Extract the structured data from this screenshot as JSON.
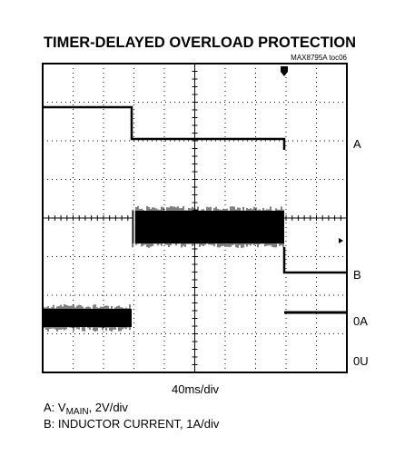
{
  "header": {
    "title": "TIMER-DELAYED OVERLOAD PROTECTION",
    "figure_id": "MAX8795A toc06"
  },
  "scope": {
    "channel_labels": [
      "A",
      "B",
      "0A",
      "0U"
    ],
    "timebase": "40ms/div"
  },
  "legend": {
    "a": {
      "prefix": "A: V",
      "sub": "MAIN",
      "suffix": ", 2V/div"
    },
    "b": "B: INDUCTOR CURRENT, 1A/div"
  }
}
